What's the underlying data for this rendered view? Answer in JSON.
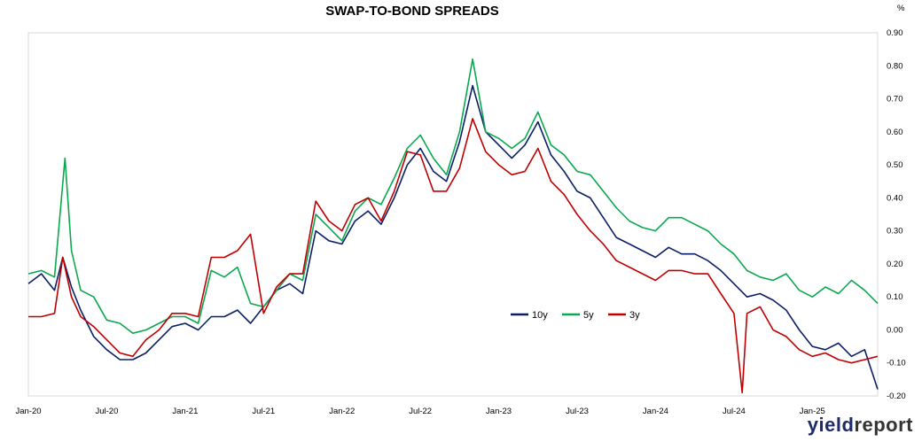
{
  "chart_data": {
    "type": "line",
    "title": "SWAP-TO-BOND SPREADS",
    "unit_label": "%",
    "x_range": [
      "2020-01",
      "2025-06"
    ],
    "ylim": [
      -0.2,
      0.9
    ],
    "y_ticks": [
      "0.90",
      "0.80",
      "0.70",
      "0.60",
      "0.50",
      "0.40",
      "0.30",
      "0.20",
      "0.10",
      "0.00",
      "-0.10",
      "-0.20"
    ],
    "x_ticks": [
      "Jan-20",
      "Jul-20",
      "Jan-21",
      "Jul-21",
      "Jan-22",
      "Jul-22",
      "Jan-23",
      "Jul-23",
      "Jan-24",
      "Jul-24",
      "Jan-25"
    ],
    "grid": false,
    "legend_position": "inside-right-middle",
    "series": [
      {
        "name": "10y",
        "color": "#0b1f66",
        "points": [
          [
            "2020-01-01",
            0.14
          ],
          [
            "2020-02-01",
            0.17
          ],
          [
            "2020-03-01",
            0.12
          ],
          [
            "2020-03-20",
            0.22
          ],
          [
            "2020-04-10",
            0.13
          ],
          [
            "2020-05-01",
            0.06
          ],
          [
            "2020-06-01",
            -0.02
          ],
          [
            "2020-07-01",
            -0.06
          ],
          [
            "2020-08-01",
            -0.09
          ],
          [
            "2020-09-01",
            -0.09
          ],
          [
            "2020-10-01",
            -0.07
          ],
          [
            "2020-11-01",
            -0.03
          ],
          [
            "2020-12-01",
            0.01
          ],
          [
            "2021-01-01",
            0.02
          ],
          [
            "2021-02-01",
            0.0
          ],
          [
            "2021-03-01",
            0.04
          ],
          [
            "2021-04-01",
            0.04
          ],
          [
            "2021-05-01",
            0.06
          ],
          [
            "2021-06-01",
            0.02
          ],
          [
            "2021-07-01",
            0.07
          ],
          [
            "2021-08-01",
            0.12
          ],
          [
            "2021-09-01",
            0.14
          ],
          [
            "2021-10-01",
            0.11
          ],
          [
            "2021-11-01",
            0.3
          ],
          [
            "2021-12-01",
            0.27
          ],
          [
            "2022-01-01",
            0.26
          ],
          [
            "2022-02-01",
            0.33
          ],
          [
            "2022-03-01",
            0.36
          ],
          [
            "2022-04-01",
            0.32
          ],
          [
            "2022-05-01",
            0.4
          ],
          [
            "2022-06-01",
            0.5
          ],
          [
            "2022-07-01",
            0.55
          ],
          [
            "2022-08-01",
            0.48
          ],
          [
            "2022-09-01",
            0.45
          ],
          [
            "2022-10-01",
            0.57
          ],
          [
            "2022-11-01",
            0.74
          ],
          [
            "2022-12-01",
            0.6
          ],
          [
            "2023-01-01",
            0.56
          ],
          [
            "2023-02-01",
            0.52
          ],
          [
            "2023-03-01",
            0.56
          ],
          [
            "2023-04-01",
            0.63
          ],
          [
            "2023-05-01",
            0.53
          ],
          [
            "2023-06-01",
            0.48
          ],
          [
            "2023-07-01",
            0.42
          ],
          [
            "2023-08-01",
            0.4
          ],
          [
            "2023-09-01",
            0.34
          ],
          [
            "2023-10-01",
            0.28
          ],
          [
            "2023-11-01",
            0.26
          ],
          [
            "2023-12-01",
            0.24
          ],
          [
            "2024-01-01",
            0.22
          ],
          [
            "2024-02-01",
            0.25
          ],
          [
            "2024-03-01",
            0.23
          ],
          [
            "2024-04-01",
            0.23
          ],
          [
            "2024-05-01",
            0.21
          ],
          [
            "2024-06-01",
            0.18
          ],
          [
            "2024-07-01",
            0.14
          ],
          [
            "2024-08-01",
            0.1
          ],
          [
            "2024-09-01",
            0.11
          ],
          [
            "2024-10-01",
            0.09
          ],
          [
            "2024-11-01",
            0.06
          ],
          [
            "2024-12-01",
            0.0
          ],
          [
            "2025-01-01",
            -0.05
          ],
          [
            "2025-02-01",
            -0.06
          ],
          [
            "2025-03-01",
            -0.04
          ],
          [
            "2025-04-01",
            -0.08
          ],
          [
            "2025-05-01",
            -0.06
          ],
          [
            "2025-06-01",
            -0.18
          ]
        ]
      },
      {
        "name": "5y",
        "color": "#0aa84f",
        "points": [
          [
            "2020-01-01",
            0.17
          ],
          [
            "2020-02-01",
            0.18
          ],
          [
            "2020-03-01",
            0.16
          ],
          [
            "2020-03-25",
            0.52
          ],
          [
            "2020-04-10",
            0.24
          ],
          [
            "2020-05-01",
            0.12
          ],
          [
            "2020-06-01",
            0.1
          ],
          [
            "2020-07-01",
            0.03
          ],
          [
            "2020-08-01",
            0.02
          ],
          [
            "2020-09-01",
            -0.01
          ],
          [
            "2020-10-01",
            0.0
          ],
          [
            "2020-11-01",
            0.02
          ],
          [
            "2020-12-01",
            0.04
          ],
          [
            "2021-01-01",
            0.04
          ],
          [
            "2021-02-01",
            0.02
          ],
          [
            "2021-03-01",
            0.18
          ],
          [
            "2021-04-01",
            0.16
          ],
          [
            "2021-05-01",
            0.19
          ],
          [
            "2021-06-01",
            0.08
          ],
          [
            "2021-07-01",
            0.07
          ],
          [
            "2021-08-01",
            0.12
          ],
          [
            "2021-09-01",
            0.17
          ],
          [
            "2021-10-01",
            0.15
          ],
          [
            "2021-11-01",
            0.35
          ],
          [
            "2021-12-01",
            0.31
          ],
          [
            "2022-01-01",
            0.27
          ],
          [
            "2022-02-01",
            0.36
          ],
          [
            "2022-03-01",
            0.4
          ],
          [
            "2022-04-01",
            0.38
          ],
          [
            "2022-05-01",
            0.46
          ],
          [
            "2022-06-01",
            0.55
          ],
          [
            "2022-07-01",
            0.59
          ],
          [
            "2022-08-01",
            0.52
          ],
          [
            "2022-09-01",
            0.47
          ],
          [
            "2022-10-01",
            0.6
          ],
          [
            "2022-11-01",
            0.82
          ],
          [
            "2022-12-01",
            0.6
          ],
          [
            "2023-01-01",
            0.58
          ],
          [
            "2023-02-01",
            0.55
          ],
          [
            "2023-03-01",
            0.58
          ],
          [
            "2023-04-01",
            0.66
          ],
          [
            "2023-05-01",
            0.56
          ],
          [
            "2023-06-01",
            0.53
          ],
          [
            "2023-07-01",
            0.48
          ],
          [
            "2023-08-01",
            0.47
          ],
          [
            "2023-09-01",
            0.42
          ],
          [
            "2023-10-01",
            0.37
          ],
          [
            "2023-11-01",
            0.33
          ],
          [
            "2023-12-01",
            0.31
          ],
          [
            "2024-01-01",
            0.3
          ],
          [
            "2024-02-01",
            0.34
          ],
          [
            "2024-03-01",
            0.34
          ],
          [
            "2024-04-01",
            0.32
          ],
          [
            "2024-05-01",
            0.3
          ],
          [
            "2024-06-01",
            0.26
          ],
          [
            "2024-07-01",
            0.23
          ],
          [
            "2024-08-01",
            0.18
          ],
          [
            "2024-09-01",
            0.16
          ],
          [
            "2024-10-01",
            0.15
          ],
          [
            "2024-11-01",
            0.17
          ],
          [
            "2024-12-01",
            0.12
          ],
          [
            "2025-01-01",
            0.1
          ],
          [
            "2025-02-01",
            0.13
          ],
          [
            "2025-03-01",
            0.11
          ],
          [
            "2025-04-01",
            0.15
          ],
          [
            "2025-05-01",
            0.12
          ],
          [
            "2025-06-01",
            0.08
          ]
        ]
      },
      {
        "name": "3y",
        "color": "#c00000",
        "points": [
          [
            "2020-01-01",
            0.04
          ],
          [
            "2020-02-01",
            0.04
          ],
          [
            "2020-03-01",
            0.05
          ],
          [
            "2020-03-20",
            0.22
          ],
          [
            "2020-04-10",
            0.1
          ],
          [
            "2020-05-01",
            0.04
          ],
          [
            "2020-06-01",
            0.01
          ],
          [
            "2020-07-01",
            -0.03
          ],
          [
            "2020-08-01",
            -0.07
          ],
          [
            "2020-09-01",
            -0.08
          ],
          [
            "2020-10-01",
            -0.03
          ],
          [
            "2020-11-01",
            0.0
          ],
          [
            "2020-12-01",
            0.05
          ],
          [
            "2021-01-01",
            0.05
          ],
          [
            "2021-02-01",
            0.04
          ],
          [
            "2021-03-01",
            0.22
          ],
          [
            "2021-04-01",
            0.22
          ],
          [
            "2021-05-01",
            0.24
          ],
          [
            "2021-06-01",
            0.29
          ],
          [
            "2021-07-01",
            0.05
          ],
          [
            "2021-08-01",
            0.13
          ],
          [
            "2021-09-01",
            0.17
          ],
          [
            "2021-10-01",
            0.17
          ],
          [
            "2021-11-01",
            0.39
          ],
          [
            "2021-12-01",
            0.33
          ],
          [
            "2022-01-01",
            0.3
          ],
          [
            "2022-02-01",
            0.38
          ],
          [
            "2022-03-01",
            0.4
          ],
          [
            "2022-04-01",
            0.33
          ],
          [
            "2022-05-01",
            0.42
          ],
          [
            "2022-06-01",
            0.54
          ],
          [
            "2022-07-01",
            0.53
          ],
          [
            "2022-08-01",
            0.42
          ],
          [
            "2022-09-01",
            0.42
          ],
          [
            "2022-10-01",
            0.49
          ],
          [
            "2022-11-01",
            0.64
          ],
          [
            "2022-12-01",
            0.54
          ],
          [
            "2023-01-01",
            0.5
          ],
          [
            "2023-02-01",
            0.47
          ],
          [
            "2023-03-01",
            0.48
          ],
          [
            "2023-04-01",
            0.55
          ],
          [
            "2023-05-01",
            0.45
          ],
          [
            "2023-06-01",
            0.41
          ],
          [
            "2023-07-01",
            0.35
          ],
          [
            "2023-08-01",
            0.3
          ],
          [
            "2023-09-01",
            0.26
          ],
          [
            "2023-10-01",
            0.21
          ],
          [
            "2023-11-01",
            0.19
          ],
          [
            "2023-12-01",
            0.17
          ],
          [
            "2024-01-01",
            0.15
          ],
          [
            "2024-02-01",
            0.18
          ],
          [
            "2024-03-01",
            0.18
          ],
          [
            "2024-04-01",
            0.17
          ],
          [
            "2024-05-01",
            0.17
          ],
          [
            "2024-06-01",
            0.11
          ],
          [
            "2024-07-01",
            0.05
          ],
          [
            "2024-07-20",
            -0.19
          ],
          [
            "2024-08-01",
            0.05
          ],
          [
            "2024-09-01",
            0.07
          ],
          [
            "2024-10-01",
            0.0
          ],
          [
            "2024-11-01",
            -0.02
          ],
          [
            "2024-12-01",
            -0.06
          ],
          [
            "2025-01-01",
            -0.08
          ],
          [
            "2025-02-01",
            -0.07
          ],
          [
            "2025-03-01",
            -0.09
          ],
          [
            "2025-04-01",
            -0.1
          ],
          [
            "2025-05-01",
            -0.09
          ],
          [
            "2025-06-01",
            -0.08
          ]
        ]
      }
    ]
  },
  "branding": {
    "prefix": "yield",
    "suffix": "report"
  }
}
